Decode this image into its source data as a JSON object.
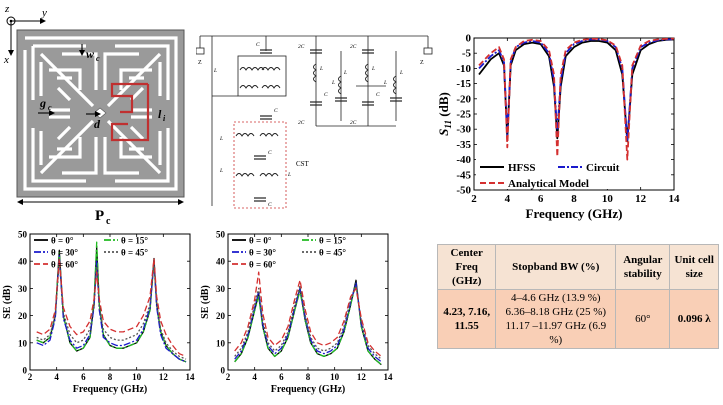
{
  "unit_cell": {
    "axis_z": "z",
    "axis_y": "y",
    "axis_x": "x",
    "label_wc": "w",
    "label_wc_sub": "c",
    "label_gc": "g",
    "label_gc_sub": "c",
    "label_d": "d",
    "label_li": "l",
    "label_li_sub": "i",
    "period_label": "P",
    "period_sub": "c"
  },
  "circuit": {
    "cst_label": "CST",
    "port_left": "Z",
    "port_right": "Z",
    "components": [
      "C",
      "L",
      "C",
      "L",
      "C",
      "L",
      "C",
      "L",
      "C",
      "L",
      "C",
      "L",
      "2C",
      "2C",
      "2C",
      "2C",
      "L",
      "L",
      "L",
      "L"
    ]
  },
  "s11_chart": {
    "chart_data": {
      "type": "line",
      "xlabel": "Frequency (GHz)",
      "ylabel": "S",
      "ylabel_sub": "11",
      "ylabel_unit": " (dB)",
      "xlim": [
        2,
        14
      ],
      "ylim": [
        -50,
        0
      ],
      "xticks": [
        2,
        4,
        6,
        8,
        10,
        12,
        14
      ],
      "yticks": [
        0,
        -5,
        -10,
        -15,
        -20,
        -25,
        -30,
        -35,
        -40,
        -45,
        -50
      ],
      "legend_position": "bottom-right",
      "series": [
        {
          "name": "HFSS",
          "color": "#000000",
          "dash": "solid",
          "x": [
            2.3,
            3.0,
            3.5,
            3.8,
            4.0,
            4.2,
            4.5,
            5.0,
            5.5,
            6.0,
            6.5,
            6.8,
            7.0,
            7.2,
            7.5,
            8.0,
            8.5,
            9.0,
            9.5,
            10.0,
            10.5,
            10.9,
            11.2,
            11.5,
            12.0,
            12.5,
            13.0,
            13.5,
            14.0
          ],
          "y": [
            -12,
            -7,
            -5,
            -9,
            -33,
            -9,
            -4,
            -2,
            -1.5,
            -2,
            -6,
            -16,
            -33,
            -16,
            -6,
            -3,
            -1.5,
            -1,
            -1,
            -1.5,
            -4,
            -12,
            -34,
            -12,
            -4,
            -2,
            -1,
            -0.6,
            -0.5
          ]
        },
        {
          "name": "Circuit",
          "color": "#1a1acc",
          "dash": "dashdot",
          "x": [
            2.3,
            3.0,
            3.5,
            3.8,
            4.0,
            4.2,
            4.5,
            5.0,
            5.5,
            6.0,
            6.5,
            6.8,
            7.0,
            7.2,
            7.5,
            8.0,
            8.5,
            9.0,
            9.5,
            10.0,
            10.5,
            10.9,
            11.2,
            11.5,
            12.0,
            12.5,
            13.0,
            13.5,
            14.0
          ],
          "y": [
            -10,
            -6,
            -4,
            -8,
            -32,
            -8,
            -3,
            -1.5,
            -1,
            -1.5,
            -5,
            -14,
            -31,
            -14,
            -5,
            -2,
            -1,
            -0.5,
            -0.5,
            -1,
            -3,
            -10,
            -34,
            -10,
            -3,
            -1.5,
            -0.8,
            -0.5,
            -0.4
          ]
        },
        {
          "name": "Analytical Model",
          "color": "#d43030",
          "dash": "dashed",
          "x": [
            2.3,
            3.0,
            3.5,
            3.8,
            4.0,
            4.2,
            4.5,
            5.0,
            5.5,
            6.0,
            6.5,
            6.8,
            7.0,
            7.2,
            7.5,
            8.0,
            8.5,
            9.0,
            9.5,
            10.0,
            10.5,
            10.9,
            11.2,
            11.5,
            12.0,
            12.5,
            13.0,
            13.5,
            14.0
          ],
          "y": [
            -9,
            -5,
            -3,
            -7,
            -36,
            -7,
            -3,
            -1,
            -0.6,
            -1,
            -4,
            -12,
            -39,
            -12,
            -4,
            -1.5,
            -0.6,
            -0.3,
            -0.3,
            -0.8,
            -2.5,
            -9,
            -40,
            -9,
            -2.5,
            -1,
            -0.5,
            -0.3,
            -0.2
          ]
        }
      ]
    }
  },
  "se_chart_1": {
    "chart_data": {
      "type": "line",
      "xlabel": "Frequency (GHz)",
      "ylabel": "SE (dB)",
      "xlim": [
        2,
        14
      ],
      "ylim": [
        0,
        50
      ],
      "xticks": [
        2,
        4,
        6,
        8,
        10,
        12,
        14
      ],
      "yticks": [
        0,
        10,
        20,
        30,
        40,
        50
      ],
      "legend_position": "top",
      "series": [
        {
          "name": "θ = 0°",
          "color": "#000000",
          "dash": "solid",
          "x": [
            2.5,
            3.0,
            3.5,
            3.9,
            4.2,
            4.5,
            5.0,
            5.5,
            6.0,
            6.5,
            6.8,
            7.0,
            7.2,
            7.5,
            8.0,
            8.5,
            9.0,
            9.5,
            10.0,
            10.5,
            11.0,
            11.3,
            11.5,
            11.8,
            12.2,
            12.7,
            13.2,
            13.7
          ],
          "y": [
            11,
            10,
            12,
            20,
            44,
            20,
            10,
            7,
            8,
            12,
            24,
            45,
            24,
            13,
            9,
            8,
            8,
            9,
            10,
            14,
            22,
            41,
            24,
            14,
            9,
            6,
            4,
            3
          ]
        },
        {
          "name": "θ = 15°",
          "color": "#22bb22",
          "dash": "dashdot",
          "x": [
            2.5,
            3.0,
            3.5,
            3.9,
            4.2,
            4.5,
            5.0,
            5.5,
            6.0,
            6.5,
            6.8,
            7.0,
            7.2,
            7.5,
            8.0,
            8.5,
            9.0,
            9.5,
            10.0,
            10.5,
            11.0,
            11.3,
            11.5,
            11.8,
            12.2,
            12.7,
            13.2,
            13.7
          ],
          "y": [
            11,
            10,
            12,
            20,
            43,
            20,
            10,
            7,
            8,
            12,
            25,
            47,
            24,
            13,
            9,
            8,
            8,
            9,
            10,
            14,
            22,
            40,
            24,
            14,
            9,
            6,
            4,
            3
          ]
        },
        {
          "name": "θ = 30°",
          "color": "#1a1acc",
          "dash": "dashdot",
          "x": [
            2.5,
            3.0,
            3.5,
            3.9,
            4.2,
            4.5,
            5.0,
            5.5,
            6.0,
            6.5,
            6.8,
            7.0,
            7.2,
            7.5,
            8.0,
            8.5,
            9.0,
            9.5,
            10.0,
            10.5,
            11.0,
            11.3,
            11.5,
            11.8,
            12.2,
            12.7,
            13.2,
            13.7
          ],
          "y": [
            10,
            9,
            11,
            19,
            42,
            19,
            11,
            8,
            9,
            13,
            23,
            40,
            22,
            12,
            10,
            9,
            9,
            10,
            11,
            15,
            23,
            40,
            23,
            13,
            8,
            6,
            4,
            3
          ]
        },
        {
          "name": "θ = 45°",
          "color": "#555555",
          "dash": "dotted",
          "x": [
            2.5,
            3.0,
            3.5,
            3.9,
            4.2,
            4.5,
            5.0,
            5.5,
            6.0,
            6.5,
            6.8,
            7.0,
            7.2,
            7.5,
            8.0,
            8.5,
            9.0,
            9.5,
            10.0,
            10.5,
            11.0,
            11.3,
            11.5,
            11.8,
            12.2,
            12.7,
            13.2,
            13.7
          ],
          "y": [
            12,
            11,
            13,
            20,
            40,
            21,
            13,
            10,
            11,
            15,
            24,
            38,
            23,
            15,
            12,
            11,
            11,
            12,
            13,
            17,
            24,
            39,
            24,
            15,
            10,
            7,
            5,
            4
          ]
        },
        {
          "name": "θ = 60°",
          "color": "#d43030",
          "dash": "dashed",
          "x": [
            2.5,
            3.0,
            3.5,
            3.9,
            4.2,
            4.5,
            5.0,
            5.5,
            6.0,
            6.5,
            6.8,
            7.0,
            7.2,
            7.5,
            8.0,
            8.5,
            9.0,
            9.5,
            10.0,
            10.5,
            11.0,
            11.3,
            11.5,
            11.8,
            12.2,
            12.7,
            13.2,
            13.7
          ],
          "y": [
            14,
            13,
            15,
            22,
            41,
            23,
            16,
            13,
            14,
            18,
            26,
            36,
            26,
            18,
            15,
            14,
            14,
            15,
            16,
            20,
            27,
            41,
            27,
            18,
            13,
            9,
            6,
            5
          ]
        }
      ]
    }
  },
  "se_chart_2": {
    "chart_data": {
      "type": "line",
      "xlabel": "Frequency (GHz)",
      "ylabel": "SE (dB)",
      "xlim": [
        2,
        14
      ],
      "ylim": [
        0,
        50
      ],
      "xticks": [
        2,
        4,
        6,
        8,
        10,
        12,
        14
      ],
      "yticks": [
        0,
        10,
        20,
        30,
        40,
        50
      ],
      "legend_position": "top",
      "series": [
        {
          "name": "θ = 0°",
          "color": "#000000",
          "dash": "solid",
          "x": [
            2.5,
            3.0,
            3.5,
            4.0,
            4.3,
            4.6,
            5.0,
            5.5,
            6.0,
            6.5,
            7.0,
            7.4,
            7.8,
            8.2,
            8.7,
            9.2,
            9.7,
            10.2,
            10.7,
            11.2,
            11.6,
            12.0,
            12.5,
            13.0,
            13.5
          ],
          "y": [
            3,
            6,
            12,
            22,
            28,
            16,
            8,
            5,
            7,
            12,
            22,
            30,
            18,
            10,
            6,
            5,
            6,
            8,
            14,
            24,
            33,
            16,
            7,
            4,
            2
          ]
        },
        {
          "name": "θ = 15°",
          "color": "#22bb22",
          "dash": "dashdot",
          "x": [
            2.5,
            3.0,
            3.5,
            4.0,
            4.3,
            4.6,
            5.0,
            5.5,
            6.0,
            6.5,
            7.0,
            7.4,
            7.8,
            8.2,
            8.7,
            9.2,
            9.7,
            10.2,
            10.7,
            11.2,
            11.6,
            12.0,
            12.5,
            13.0,
            13.5
          ],
          "y": [
            3,
            6,
            12,
            22,
            27,
            16,
            8,
            5,
            7,
            12,
            22,
            29,
            18,
            10,
            6,
            5,
            6,
            8,
            14,
            24,
            32,
            16,
            7,
            4,
            2
          ]
        },
        {
          "name": "θ = 30°",
          "color": "#1a1acc",
          "dash": "dashdot",
          "x": [
            2.5,
            3.0,
            3.5,
            4.0,
            4.3,
            4.6,
            5.0,
            5.5,
            6.0,
            6.5,
            7.0,
            7.4,
            7.8,
            8.2,
            8.7,
            9.2,
            9.7,
            10.2,
            10.7,
            11.2,
            11.6,
            12.0,
            12.5,
            13.0,
            13.5
          ],
          "y": [
            4,
            7,
            13,
            23,
            29,
            17,
            9,
            6,
            8,
            13,
            23,
            30,
            19,
            11,
            7,
            6,
            7,
            9,
            15,
            25,
            32,
            17,
            8,
            5,
            3
          ]
        },
        {
          "name": "θ = 45°",
          "color": "#555555",
          "dash": "dotted",
          "x": [
            2.5,
            3.0,
            3.5,
            4.0,
            4.3,
            4.6,
            5.0,
            5.5,
            6.0,
            6.5,
            7.0,
            7.4,
            7.8,
            8.2,
            8.7,
            9.2,
            9.7,
            10.2,
            10.7,
            11.2,
            11.6,
            12.0,
            12.5,
            13.0,
            13.5
          ],
          "y": [
            5,
            8,
            14,
            24,
            30,
            18,
            10,
            7,
            9,
            14,
            24,
            31,
            20,
            12,
            8,
            7,
            8,
            10,
            16,
            26,
            31,
            18,
            9,
            6,
            4
          ]
        },
        {
          "name": "θ = 60°",
          "color": "#d43030",
          "dash": "dashed",
          "x": [
            2.5,
            3.0,
            3.5,
            4.0,
            4.3,
            4.6,
            5.0,
            5.5,
            6.0,
            6.5,
            7.0,
            7.4,
            7.8,
            8.2,
            8.7,
            9.2,
            9.7,
            10.2,
            10.7,
            11.2,
            11.6,
            12.0,
            12.5,
            13.0,
            13.5
          ],
          "y": [
            7,
            10,
            16,
            26,
            36,
            21,
            12,
            9,
            11,
            16,
            26,
            33,
            22,
            14,
            10,
            9,
            10,
            12,
            18,
            27,
            30,
            19,
            10,
            7,
            5
          ]
        }
      ]
    }
  },
  "table": {
    "headers": [
      "Center Freq (GHz)",
      "Stopband BW (%)",
      "Angular stability",
      "Unit cell size"
    ],
    "center_freq": "4.23, 7.16, 11.55",
    "bw_lines": [
      "4–4.6 GHz (13.9 %)",
      "6.36–8.18 GHz (25 %)",
      "11.17 –11.97 GHz (6.9 %)"
    ],
    "angular": "60°",
    "size": "0.096 λ"
  }
}
